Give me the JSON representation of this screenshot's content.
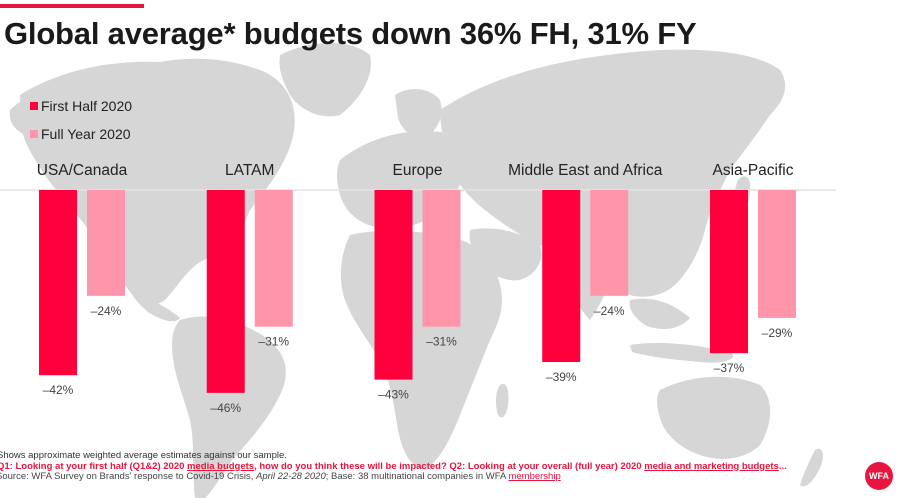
{
  "slide": {
    "title": "Global average* budgets down 36% FH, 31% FY",
    "accent_color": "#e8153f"
  },
  "legend": [
    {
      "label": "First Half 2020",
      "color": "#ff003c"
    },
    {
      "label": "Full Year 2020",
      "color": "#ff95aa"
    }
  ],
  "chart_data": {
    "type": "bar",
    "title": "Global average* budgets down 36% FH, 31% FY",
    "xlabel": "",
    "ylabel": "",
    "categories": [
      "USA/Canada",
      "LATAM",
      "Europe",
      "Middle East and Africa",
      "Asia-Pacific"
    ],
    "series": [
      {
        "name": "First Half 2020",
        "color": "#ff003c",
        "values": [
          -42,
          -46,
          -43,
          -39,
          -37
        ],
        "labels": [
          "-42%",
          "-46%",
          "-43%",
          "-39%",
          "-37%"
        ]
      },
      {
        "name": "Full Year 2020",
        "color": "#ff95aa",
        "values": [
          -24,
          -31,
          -31,
          -24,
          -29
        ],
        "labels": [
          "-24%",
          "-31%",
          "-31%",
          "-24%",
          "-29%"
        ]
      }
    ],
    "ylim": [
      -50,
      0
    ],
    "category_labels_position": "top",
    "legend_position": "top-left",
    "grid": false
  },
  "footer": {
    "note": "Shows approximate weighted average estimates against our sample.",
    "question_prefix": "Q1: Looking at your first half (Q1&2) 2020 ",
    "question_link1": "media budgets",
    "question_mid": ", how do you think these will be impacted? Q2: Looking at your overall (full year) 2020 ",
    "question_link2": "media and marketing budgets",
    "question_suffix": "...",
    "source_prefix": "Source: WFA Survey on Brands' response to Covid-19 Crisis, ",
    "source_dates": "April 22-28 2020",
    "source_mid": "; Base: 38 multinational companies in WFA ",
    "source_link": "membership"
  },
  "logo": {
    "text": "WFA"
  }
}
